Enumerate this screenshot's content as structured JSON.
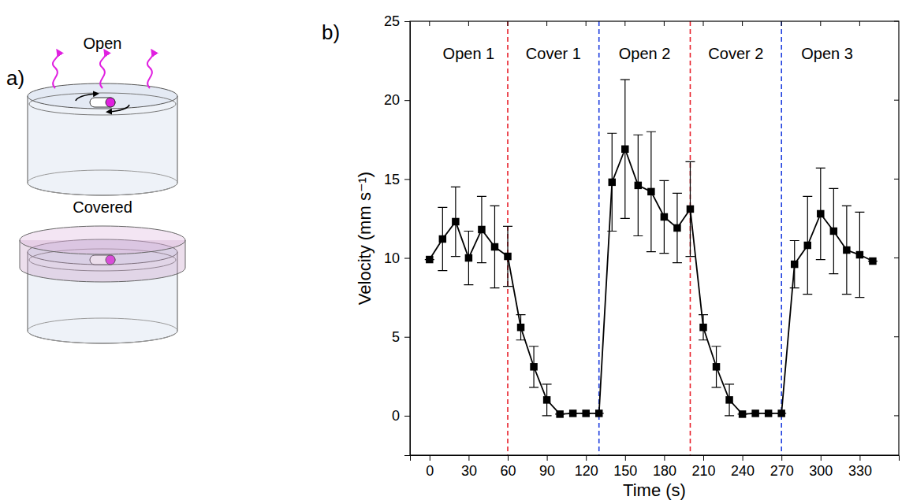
{
  "panel_a": {
    "label": "a)",
    "open_label": "Open",
    "covered_label": "Covered"
  },
  "chart_data": {
    "type": "line",
    "panel_label": "b)",
    "x_label": "Time (s)",
    "y_label": "Velocity (mm s⁻¹)",
    "x": [
      0,
      10,
      20,
      30,
      40,
      50,
      60,
      70,
      80,
      90,
      100,
      110,
      120,
      130,
      140,
      150,
      160,
      170,
      180,
      190,
      200,
      210,
      220,
      230,
      240,
      250,
      260,
      270,
      280,
      290,
      300,
      310,
      320,
      330,
      340
    ],
    "values": [
      9.9,
      11.2,
      12.3,
      10.0,
      11.8,
      10.7,
      10.1,
      5.6,
      3.1,
      1.0,
      0.1,
      0.15,
      0.15,
      0.15,
      14.8,
      16.9,
      14.6,
      14.2,
      12.6,
      11.9,
      13.1,
      5.6,
      3.1,
      1.0,
      0.1,
      0.15,
      0.15,
      0.15,
      9.6,
      10.8,
      12.8,
      11.7,
      10.5,
      10.2,
      9.8
    ],
    "errors": [
      0,
      2.0,
      2.2,
      1.7,
      2.1,
      2.6,
      1.9,
      0.8,
      1.3,
      1.0,
      0,
      0,
      0,
      0,
      3.1,
      4.4,
      3.2,
      3.8,
      2.3,
      2.2,
      3.0,
      0.8,
      1.3,
      1.0,
      0,
      0,
      0,
      0,
      1.5,
      3.1,
      2.9,
      2.7,
      2.8,
      2.7,
      0
    ],
    "color": "#000000",
    "marker": "square",
    "xlim": [
      -15,
      360
    ],
    "ylim": [
      -2.5,
      25
    ],
    "xticks": [
      0,
      30,
      60,
      90,
      120,
      150,
      180,
      210,
      240,
      270,
      300,
      330
    ],
    "yticks": [
      0,
      5,
      10,
      15,
      20,
      25
    ],
    "dividers": [
      {
        "x": 60,
        "color": "#e8202a"
      },
      {
        "x": 130,
        "color": "#2040e0"
      },
      {
        "x": 200,
        "color": "#e8202a"
      },
      {
        "x": 270,
        "color": "#2040e0"
      }
    ],
    "regions": [
      {
        "label": "Open 1",
        "x": 30
      },
      {
        "label": "Cover 1",
        "x": 95
      },
      {
        "label": "Open 2",
        "x": 165
      },
      {
        "label": "Cover 2",
        "x": 235
      },
      {
        "label": "Open 3",
        "x": 305
      }
    ],
    "region_label_y": 22.6
  }
}
